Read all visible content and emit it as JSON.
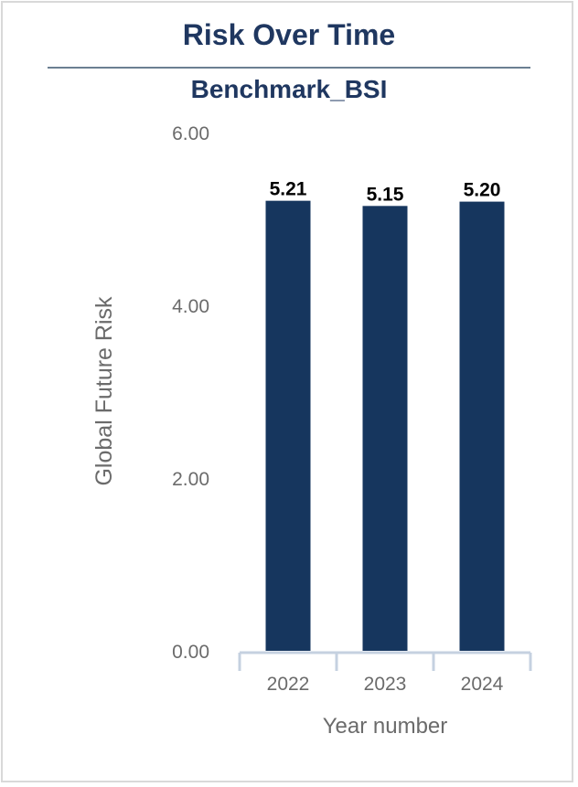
{
  "chart_data": {
    "type": "bar",
    "title": "Risk Over Time",
    "subtitle": "Benchmark_BSI",
    "xlabel": "Year number",
    "ylabel": "Global Future Risk",
    "categories": [
      "2022",
      "2023",
      "2024"
    ],
    "values": [
      5.21,
      5.15,
      5.2
    ],
    "value_labels": [
      "5.21",
      "5.15",
      "5.20"
    ],
    "ylim": [
      0,
      6
    ],
    "yticks": [
      "0.00",
      "2.00",
      "4.00",
      "6.00"
    ],
    "grid": false,
    "legend": "none",
    "bar_color": "#16365e",
    "axis_color": "#c5d1e0"
  }
}
